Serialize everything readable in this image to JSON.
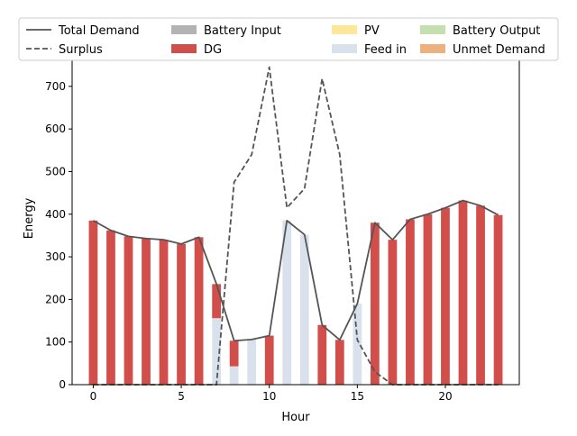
{
  "chart_data": {
    "type": "bar",
    "xlabel": "Hour",
    "ylabel": "Energy",
    "xlim": [
      -1.2,
      24.2
    ],
    "ylim": [
      0,
      780
    ],
    "x_ticks": [
      0,
      5,
      10,
      15,
      20
    ],
    "y_ticks": [
      0,
      100,
      200,
      300,
      400,
      500,
      600,
      700
    ],
    "grid": false,
    "legend_position": "top",
    "x": [
      0,
      1,
      2,
      3,
      4,
      5,
      6,
      7,
      8,
      9,
      10,
      11,
      12,
      13,
      14,
      15,
      16,
      17,
      18,
      19,
      20,
      21,
      22,
      23
    ],
    "series": [
      {
        "name": "Total Demand",
        "kind": "line",
        "style": "solid",
        "color": "#555555",
        "values": [
          385,
          362,
          348,
          343,
          340,
          330,
          346,
          236,
          103,
          106,
          115,
          385,
          352,
          140,
          105,
          190,
          380,
          340,
          388,
          400,
          415,
          432,
          420,
          398
        ]
      },
      {
        "name": "Surplus",
        "kind": "line",
        "style": "dashed",
        "color": "#555555",
        "values": [
          0,
          0,
          0,
          0,
          0,
          0,
          0,
          0,
          475,
          540,
          745,
          415,
          460,
          718,
          540,
          105,
          30,
          0,
          0,
          0,
          0,
          0,
          0,
          0
        ]
      },
      {
        "name": "Battery Input",
        "kind": "bar",
        "color": "#b3b3b3",
        "values": [
          0,
          0,
          0,
          0,
          0,
          0,
          0,
          0,
          0,
          0,
          0,
          0,
          0,
          0,
          0,
          0,
          0,
          0,
          0,
          0,
          0,
          0,
          0,
          0
        ]
      },
      {
        "name": "DG",
        "kind": "bar",
        "color": "#d24e4b",
        "values": [
          385,
          362,
          348,
          343,
          340,
          330,
          346,
          80,
          60,
          0,
          115,
          0,
          0,
          140,
          105,
          0,
          380,
          340,
          388,
          400,
          415,
          432,
          420,
          398
        ]
      },
      {
        "name": "PV",
        "kind": "bar",
        "color": "#fde89a",
        "values": [
          0,
          0,
          0,
          0,
          0,
          0,
          0,
          0,
          0,
          0,
          0,
          0,
          0,
          0,
          0,
          0,
          0,
          0,
          0,
          0,
          0,
          0,
          0,
          0
        ]
      },
      {
        "name": "Feed in",
        "kind": "bar",
        "color": "#d9e2ec",
        "values": [
          0,
          0,
          0,
          0,
          0,
          0,
          0,
          156,
          43,
          106,
          0,
          385,
          352,
          0,
          0,
          190,
          0,
          0,
          0,
          0,
          0,
          0,
          0,
          0
        ]
      },
      {
        "name": "Battery Output",
        "kind": "bar",
        "color": "#c4e0b0",
        "values": [
          0,
          0,
          0,
          0,
          0,
          0,
          0,
          0,
          0,
          0,
          0,
          0,
          0,
          0,
          0,
          0,
          0,
          0,
          0,
          0,
          0,
          0,
          0,
          0
        ]
      },
      {
        "name": "Unmet Demand",
        "kind": "bar",
        "color": "#edb07f",
        "values": [
          0,
          0,
          0,
          0,
          0,
          0,
          0,
          0,
          0,
          0,
          0,
          0,
          0,
          0,
          0,
          0,
          0,
          0,
          0,
          0,
          0,
          0,
          0,
          0
        ]
      }
    ],
    "stack_order": [
      "Feed in",
      "DG",
      "Battery Output",
      "PV",
      "Battery Input",
      "Unmet Demand"
    ]
  }
}
